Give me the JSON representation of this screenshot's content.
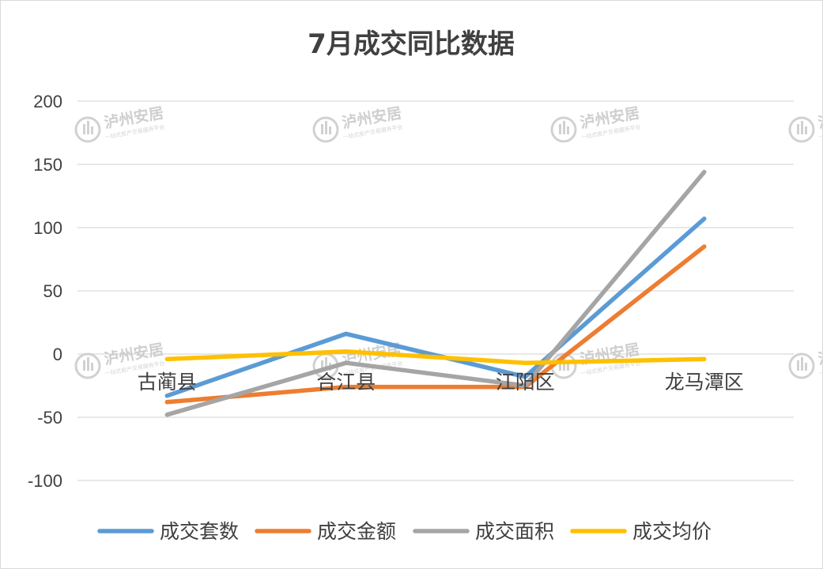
{
  "chart_data": {
    "type": "line",
    "title": "7月成交同比数据",
    "categories": [
      "古蔺县",
      "合江县",
      "江阳区",
      "龙马潭区"
    ],
    "yticks": [
      "200",
      "150",
      "100",
      "50",
      "0",
      "-50",
      "-100"
    ],
    "ylim": [
      -100,
      200
    ],
    "grid": true,
    "legend_position": "bottom",
    "series": [
      {
        "name": "成交套数",
        "color": "#5B9BD5",
        "values": [
          -33,
          16,
          -18,
          107
        ]
      },
      {
        "name": "成交金额",
        "color": "#ED7D31",
        "values": [
          -38,
          -26,
          -26,
          85
        ]
      },
      {
        "name": "成交面积",
        "color": "#A5A5A5",
        "values": [
          -48,
          -7,
          -25,
          144
        ]
      },
      {
        "name": "成交均价",
        "color": "#FFC000",
        "values": [
          -4,
          2,
          -7,
          -4
        ]
      }
    ]
  },
  "watermark": {
    "brand": "泸州安居",
    "tagline": "一站式房产交易服务平台",
    "icon": "building-logo-icon"
  }
}
